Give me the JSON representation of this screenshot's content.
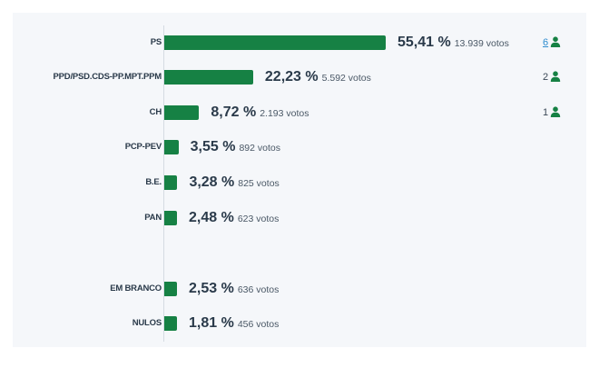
{
  "chart_data": {
    "type": "bar",
    "orientation": "horizontal",
    "colors": {
      "bar": "#168144",
      "seat_icon": "#168144",
      "link": "#2e8ccf"
    },
    "rows": [
      {
        "party": "PS",
        "percent": 55.41,
        "percent_label": "55,41 %",
        "votes_label": "13.939 votos",
        "seats": "6",
        "seats_link": true
      },
      {
        "party": "PPD/PSD.CDS-PP.MPT.PPM",
        "percent": 22.23,
        "percent_label": "22,23 %",
        "votes_label": "5.592 votos",
        "seats": "2",
        "seats_link": false
      },
      {
        "party": "CH",
        "percent": 8.72,
        "percent_label": "8,72 %",
        "votes_label": "2.193 votos",
        "seats": "1",
        "seats_link": false
      },
      {
        "party": "PCP-PEV",
        "percent": 3.55,
        "percent_label": "3,55 %",
        "votes_label": "892 votos",
        "seats": null,
        "seats_link": false
      },
      {
        "party": "B.E.",
        "percent": 3.28,
        "percent_label": "3,28 %",
        "votes_label": "825 votos",
        "seats": null,
        "seats_link": false
      },
      {
        "party": "PAN",
        "percent": 2.48,
        "percent_label": "2,48 %",
        "votes_label": "623 votos",
        "seats": null,
        "seats_link": false
      },
      {
        "party": "EM BRANCO",
        "percent": 2.53,
        "percent_label": "2,53 %",
        "votes_label": "636 votos",
        "seats": null,
        "seats_link": false
      },
      {
        "party": "NULOS",
        "percent": 1.81,
        "percent_label": "1,81 %",
        "votes_label": "456 votos",
        "seats": null,
        "seats_link": false
      }
    ]
  }
}
